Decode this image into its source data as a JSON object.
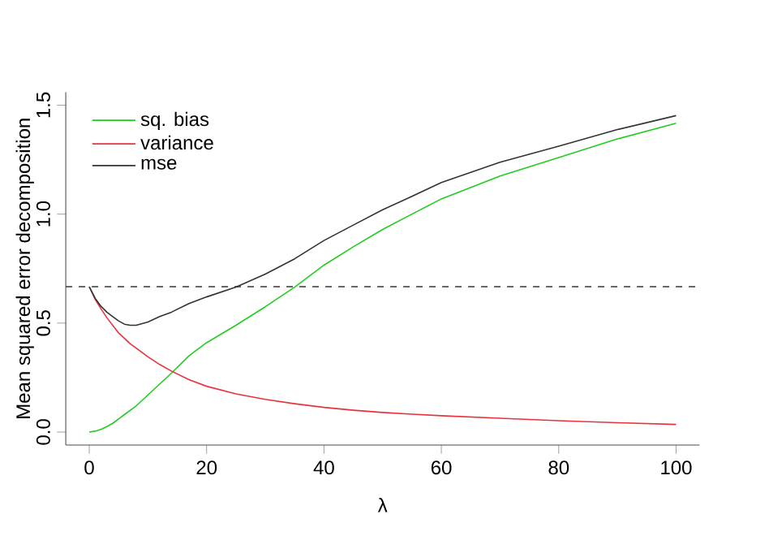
{
  "chart_data": {
    "type": "line",
    "xlabel": "λ",
    "ylabel": "Mean squared error decomposition",
    "x": [
      0,
      1,
      2,
      3,
      4,
      5,
      6,
      7,
      8,
      10,
      12,
      14,
      17,
      20,
      25,
      30,
      35,
      40,
      45,
      50,
      55,
      60,
      70,
      80,
      90,
      100
    ],
    "series": [
      {
        "name": "sq. bias",
        "color": "#22cc22",
        "values": [
          0,
          0.004,
          0.012,
          0.025,
          0.04,
          0.06,
          0.08,
          0.1,
          0.12,
          0.17,
          0.22,
          0.27,
          0.35,
          0.41,
          0.49,
          0.575,
          0.665,
          0.766,
          0.85,
          0.93,
          1.0,
          1.07,
          1.175,
          1.26,
          1.345,
          1.417
        ]
      },
      {
        "name": "variance",
        "color": "#e8333a",
        "values": [
          0.667,
          0.61,
          0.565,
          0.525,
          0.49,
          0.455,
          0.43,
          0.405,
          0.385,
          0.345,
          0.31,
          0.28,
          0.24,
          0.21,
          0.175,
          0.15,
          0.13,
          0.113,
          0.1,
          0.09,
          0.082,
          0.075,
          0.063,
          0.052,
          0.043,
          0.035
        ]
      },
      {
        "name": "mse",
        "color": "#333333",
        "values": [
          0.667,
          0.614,
          0.577,
          0.55,
          0.53,
          0.51,
          0.495,
          0.49,
          0.49,
          0.505,
          0.53,
          0.55,
          0.59,
          0.62,
          0.665,
          0.725,
          0.795,
          0.879,
          0.95,
          1.02,
          1.082,
          1.145,
          1.238,
          1.312,
          1.388,
          1.452
        ]
      }
    ],
    "xlim": [
      -4,
      104
    ],
    "ylim": [
      -0.06,
      1.56
    ],
    "xticks": [
      0,
      20,
      40,
      60,
      80,
      100
    ],
    "yticks": [
      {
        "value": 0,
        "label": "0.0"
      },
      {
        "value": 0.5,
        "label": "0.5"
      },
      {
        "value": 1,
        "label": "1.0"
      },
      {
        "value": 1.5,
        "label": "1.5"
      }
    ],
    "ref_lines": [
      {
        "axis": "y",
        "value": 0.667,
        "line_style": "dashed",
        "color": "#333333"
      }
    ],
    "legend": "top left",
    "grid": false,
    "marker": "none",
    "line_style": "solid"
  }
}
